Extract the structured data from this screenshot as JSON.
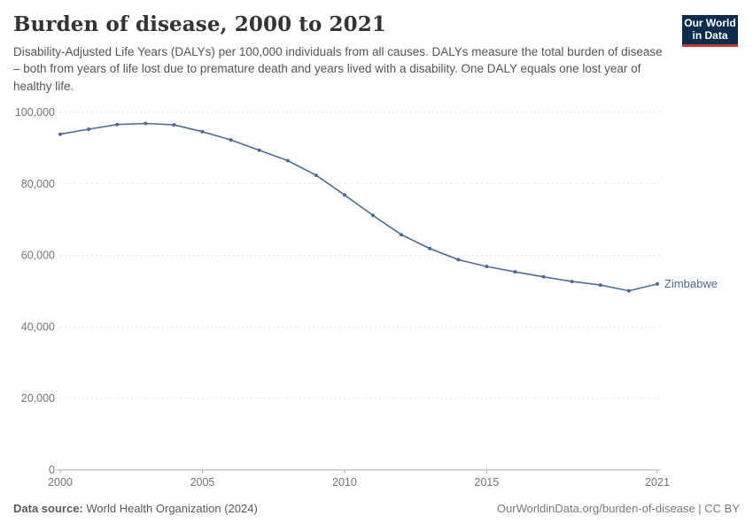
{
  "header": {
    "title": "Burden of disease, 2000 to 2021",
    "subtitle": "Disability-Adjusted Life Years (DALYs) per 100,000 individuals from all causes. DALYs measure the total burden of disease – both from years of life lost due to premature death and years lived with a disability. One DALY equals one lost year of healthy life.",
    "logo": {
      "line1": "Our World",
      "line2": "in Data"
    }
  },
  "chart_data": {
    "type": "line",
    "title": "Burden of disease, 2000 to 2021",
    "entity": "Zimbabwe",
    "x": [
      2000,
      2001,
      2002,
      2003,
      2004,
      2005,
      2006,
      2007,
      2008,
      2009,
      2010,
      2011,
      2012,
      2013,
      2014,
      2015,
      2016,
      2017,
      2018,
      2019,
      2020,
      2021
    ],
    "series": [
      {
        "name": "Zimbabwe",
        "values": [
          93900,
          95300,
          96600,
          96900,
          96500,
          94600,
          92300,
          89400,
          86500,
          82400,
          76900,
          71200,
          65800,
          61900,
          58800,
          56900,
          55400,
          54000,
          52700,
          51700,
          50100,
          52000
        ]
      }
    ],
    "xlabel": "",
    "ylabel": "",
    "ylim": [
      0,
      100000
    ],
    "yticks": [
      0,
      20000,
      40000,
      60000,
      80000,
      100000
    ],
    "xticks": [
      2000,
      2005,
      2010,
      2015,
      2021
    ],
    "grid": "horizontal-dashed",
    "legend_position": "end-of-line-label",
    "line_color": "#4C6A9C"
  },
  "colors": {
    "accent_blue": "#4C6A9C",
    "logo_navy": "#0d2d4e",
    "logo_red": "#c0392b",
    "grid": "#e0e0e0",
    "axis": "#a8a8a8",
    "tick_text": "#737373"
  },
  "footer": {
    "datasource_label": "Data source:",
    "datasource": "World Health Organization (2024)",
    "right_text": "OurWorldinData.org/burden-of-disease | CC BY"
  }
}
